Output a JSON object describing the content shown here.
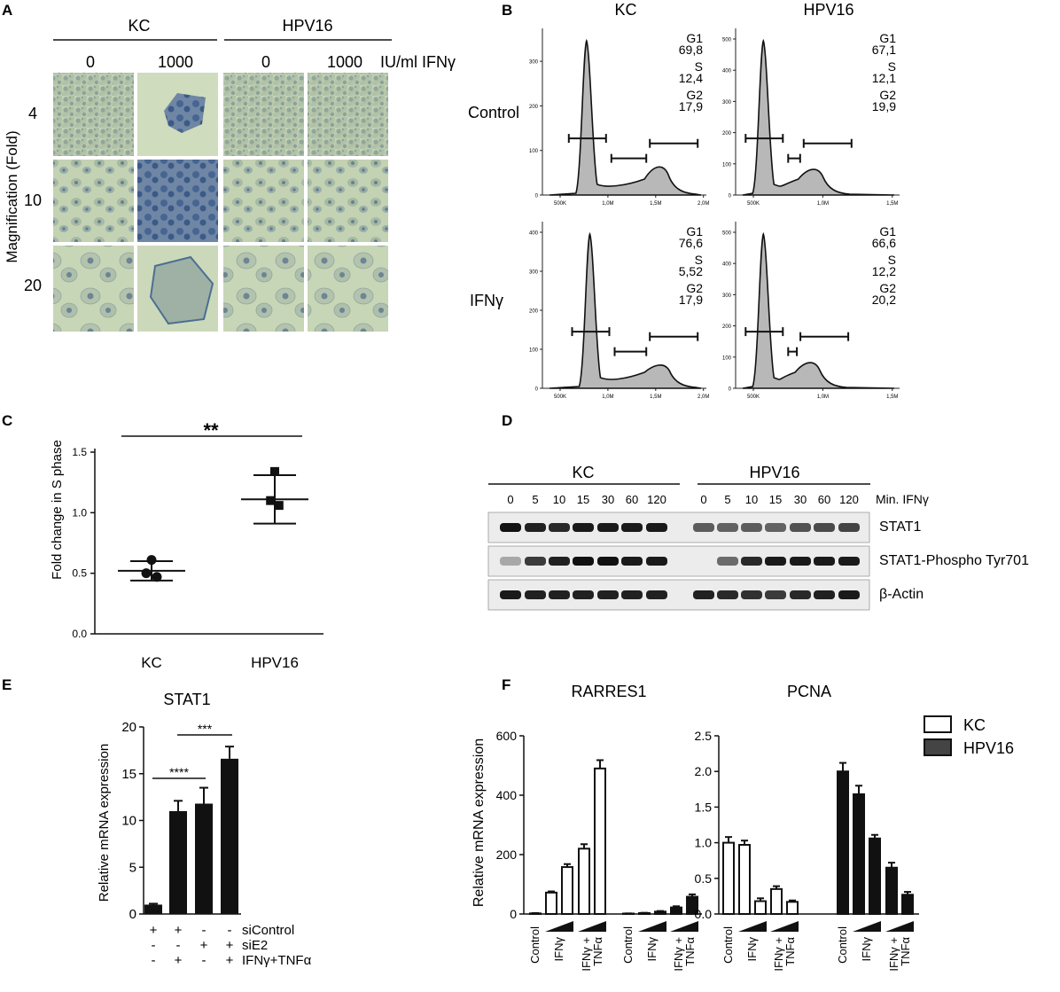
{
  "panels": {
    "A": {
      "letter": "A",
      "groups": [
        "KC",
        "HPV16"
      ],
      "doses": [
        "0",
        "1000",
        "0",
        "1000"
      ],
      "dose_unit": "IU/ml IFNγ",
      "ylabel": "Magnification (Fold)",
      "magnifications": [
        "4",
        "10",
        "20"
      ]
    },
    "B": {
      "letter": "B",
      "columns": [
        "KC",
        "HPV16"
      ],
      "rows": [
        "Control",
        "IFNγ"
      ],
      "histograms": [
        {
          "row": "Control",
          "column": "KC",
          "G1": "69,8",
          "S": "12,4",
          "G2": "17,9",
          "yticks": [
            "0",
            "100",
            "200",
            "300"
          ],
          "xticks": [
            "500K",
            "1,0M",
            "1,5M",
            "2,0M"
          ]
        },
        {
          "row": "Control",
          "column": "HPV16",
          "G1": "67,1",
          "S": "12,1",
          "G2": "19,9",
          "yticks": [
            "0",
            "100",
            "200",
            "300",
            "400",
            "500"
          ],
          "xticks": [
            "500K",
            "1,0M",
            "1,5M"
          ]
        },
        {
          "row": "IFNγ",
          "column": "KC",
          "G1": "76,6",
          "S": "5,52",
          "G2": "17,9",
          "yticks": [
            "0",
            "100",
            "200",
            "300",
            "400"
          ],
          "xticks": [
            "500K",
            "1,0M",
            "1,5M",
            "2,0M"
          ]
        },
        {
          "row": "IFNγ",
          "column": "HPV16",
          "G1": "66,6",
          "S": "12,2",
          "G2": "20,2",
          "yticks": [
            "0",
            "100",
            "200",
            "300",
            "400",
            "500"
          ],
          "xticks": [
            "500K",
            "1,0M",
            "1,5M"
          ]
        }
      ],
      "labels": {
        "G1": "G1",
        "S": "S",
        "G2": "G2"
      }
    },
    "C": {
      "letter": "C",
      "ylabel": "Fold change in S phase",
      "significance": "**"
    },
    "D": {
      "letter": "D",
      "groups": [
        "KC",
        "HPV16"
      ],
      "timepoints": [
        "0",
        "5",
        "10",
        "15",
        "30",
        "60",
        "120"
      ],
      "time_label": "Min. IFNγ",
      "bands": [
        "STAT1",
        "STAT1-Phospho Tyr701",
        "β-Actin"
      ]
    },
    "E": {
      "letter": "E",
      "title": "STAT1",
      "ylabel": "Relative mRNA expression",
      "sig1": "****",
      "sig2": "***",
      "conditions": {
        "rows": [
          "siControl",
          "siE2",
          "IFNγ+TNFα"
        ],
        "marks": [
          [
            "+",
            "+",
            "-",
            "-"
          ],
          [
            "-",
            "-",
            "+",
            "+"
          ],
          [
            "-",
            "+",
            "-",
            "+"
          ]
        ]
      }
    },
    "F": {
      "letter": "F",
      "ylabel": "Relative mRNA expression",
      "legend": [
        {
          "name": "KC",
          "color": "#ffffff"
        },
        {
          "name": "HPV16",
          "color": "#444444"
        }
      ],
      "xlabels": [
        "Control",
        "IFNγ",
        "IFNγ +",
        "TNFα"
      ]
    }
  },
  "chart_data": [
    {
      "panel": "C",
      "type": "scatter",
      "categories": [
        "KC",
        "HPV16"
      ],
      "series": [
        {
          "name": "KC",
          "points": [
            0.61,
            0.5,
            0.47
          ],
          "mean": 0.52,
          "sd": [
            0.44,
            0.6
          ]
        },
        {
          "name": "HPV16",
          "points": [
            1.34,
            1.1,
            1.06
          ],
          "mean": 1.11,
          "sd": [
            0.91,
            1.31
          ]
        }
      ],
      "ylim": [
        0,
        1.5
      ],
      "yticks": [
        "0.0",
        "0.5",
        "1.0",
        "1.5"
      ]
    },
    {
      "panel": "E",
      "type": "bar",
      "title": "STAT1",
      "values": [
        1.0,
        11.0,
        11.8,
        16.6
      ],
      "errors": [
        0.1,
        1.1,
        1.7,
        1.3
      ],
      "ylim": [
        0,
        20
      ],
      "yticks": [
        "0",
        "5",
        "10",
        "15",
        "20"
      ]
    },
    {
      "panel": "F",
      "type": "bar",
      "title": "RARRES1",
      "series": [
        {
          "name": "KC",
          "values": [
            2,
            72,
            158,
            220,
            490
          ],
          "errors": [
            1,
            4,
            10,
            15,
            28
          ]
        },
        {
          "name": "HPV16",
          "values": [
            1,
            3,
            8,
            22,
            58
          ],
          "errors": [
            1,
            1,
            2,
            4,
            8
          ]
        }
      ],
      "ylim": [
        0,
        600
      ],
      "yticks": [
        "0",
        "200",
        "400",
        "600"
      ]
    },
    {
      "panel": "F",
      "type": "bar",
      "title": "PCNA",
      "series": [
        {
          "name": "KC",
          "values": [
            1.0,
            0.97,
            0.18,
            0.35,
            0.17
          ],
          "errors": [
            0.08,
            0.06,
            0.04,
            0.04,
            0.02
          ]
        },
        {
          "name": "HPV16",
          "values": [
            2.0,
            1.68,
            1.06,
            0.65,
            0.27
          ],
          "errors": [
            0.12,
            0.12,
            0.05,
            0.07,
            0.04
          ]
        }
      ],
      "ylim": [
        0,
        2.5
      ],
      "yticks": [
        "0.0",
        "0.5",
        "1.0",
        "1.5",
        "2.0",
        "2.5"
      ]
    }
  ]
}
